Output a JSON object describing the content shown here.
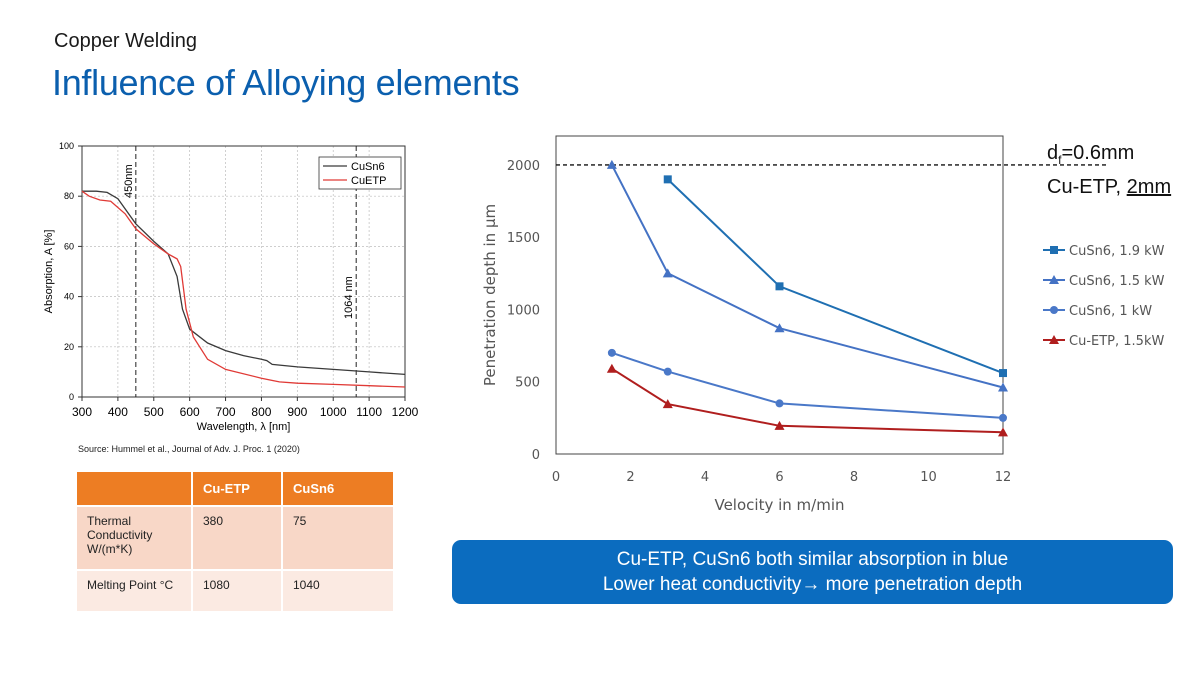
{
  "header": {
    "subtitle": "Copper Welding",
    "title": "Influence of Alloying elements"
  },
  "source_note": "Source: Hummel et al., Journal of Adv. J. Proc. 1 (2020)",
  "table": {
    "headers": [
      "",
      "Cu-ETP",
      "CuSn6"
    ],
    "rows": [
      {
        "label": "Thermal Conductivity W/(m*K)",
        "cu_etp": "380",
        "cusn6": "75"
      },
      {
        "label": "Melting Point °C",
        "cu_etp": "1080",
        "cusn6": "1040"
      }
    ]
  },
  "callout": {
    "line1": "Cu-ETP, CuSn6 both similar absorption in blue",
    "line2": "Lower heat conductivity→ more penetration depth"
  },
  "note": {
    "df_prefix": "d",
    "df_sub": "f",
    "df_rest": "=0.6mm",
    "material": "Cu-ETP, ",
    "thickness": "2mm"
  },
  "colors": {
    "title_blue": "#0b5fae",
    "orange": "#ed7d23",
    "callout_blue": "#0b6cbf",
    "cusn6_abs": "#3a3a3a",
    "cuetp_abs": "#e03a36",
    "s19": "#1f6fb2",
    "s15": "#4472c4",
    "s1": "#4a78c8",
    "setp": "#b01e1e"
  },
  "chart_data": [
    {
      "type": "line",
      "xlabel": "Wavelength, λ [nm]",
      "ylabel": "Absorption, A [%]",
      "xlim": [
        300,
        1200
      ],
      "ylim": [
        0,
        100
      ],
      "xticks": [
        300,
        400,
        500,
        600,
        700,
        800,
        900,
        1000,
        1100,
        1200
      ],
      "yticks": [
        0,
        20,
        40,
        60,
        80,
        100
      ],
      "legend": "top-right",
      "vlines": [
        {
          "x": 450,
          "label": "450nm"
        },
        {
          "x": 1064,
          "label": "1064 nm"
        }
      ],
      "series": [
        {
          "name": "CuSn6",
          "color": "#3a3a3a",
          "x": [
            300,
            340,
            370,
            400,
            450,
            500,
            540,
            565,
            580,
            600,
            650,
            700,
            750,
            800,
            815,
            830,
            900,
            1000,
            1100,
            1200
          ],
          "y": [
            82,
            82,
            81.5,
            79,
            69,
            62,
            57,
            48,
            35,
            27,
            21.5,
            18.5,
            16.5,
            15,
            14.5,
            13,
            12,
            11,
            10,
            9
          ]
        },
        {
          "name": "CuETP",
          "color": "#e03a36",
          "x": [
            300,
            320,
            350,
            380,
            420,
            450,
            500,
            540,
            565,
            575,
            590,
            610,
            650,
            700,
            800,
            850,
            900,
            1000,
            1100,
            1200
          ],
          "y": [
            82,
            80,
            78.5,
            78,
            73,
            67,
            61,
            57,
            55,
            52,
            35,
            24,
            15,
            11,
            7.5,
            6,
            5.5,
            5,
            4.5,
            4
          ]
        }
      ]
    },
    {
      "type": "line",
      "xlabel": "Velocity in m/min",
      "ylabel": "Penetration depth in µm",
      "xlim": [
        0,
        12
      ],
      "ylim": [
        0,
        2200
      ],
      "xticks": [
        0,
        2,
        4,
        6,
        8,
        10,
        12
      ],
      "yticks": [
        0,
        500,
        1000,
        1500,
        2000
      ],
      "reference_line": 2000,
      "legend": "right",
      "series": [
        {
          "name": "CuSn6, 1.9 kW",
          "marker": "square",
          "color": "#1f6fb2",
          "x": [
            3,
            6,
            12
          ],
          "y": [
            1900,
            1160,
            560
          ]
        },
        {
          "name": "CuSn6, 1.5 kW",
          "marker": "triangle",
          "color": "#4472c4",
          "x": [
            1.5,
            3,
            6,
            12
          ],
          "y": [
            2000,
            1250,
            870,
            460
          ]
        },
        {
          "name": "CuSn6, 1 kW",
          "marker": "circle",
          "color": "#4a78c8",
          "x": [
            1.5,
            3,
            6,
            12
          ],
          "y": [
            700,
            570,
            350,
            250
          ]
        },
        {
          "name": "Cu-ETP, 1.5kW",
          "marker": "triangle",
          "color": "#b01e1e",
          "x": [
            1.5,
            3,
            6,
            12
          ],
          "y": [
            590,
            345,
            195,
            150
          ]
        }
      ]
    }
  ]
}
